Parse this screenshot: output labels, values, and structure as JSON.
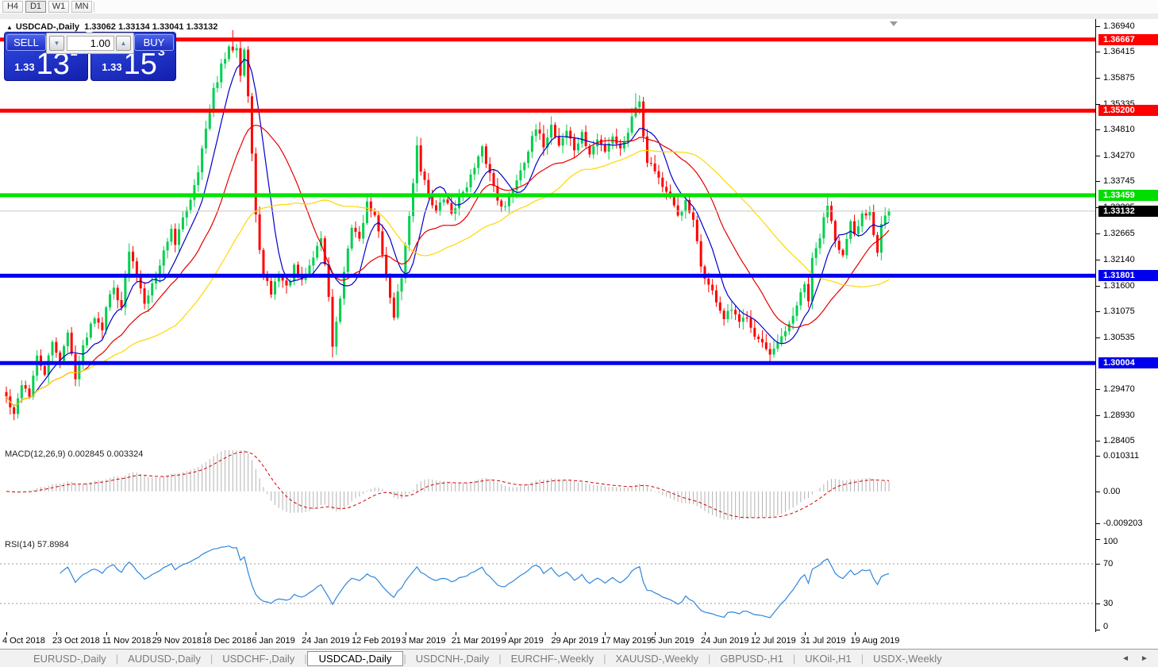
{
  "toolbar": {
    "timeframes": [
      {
        "label": "H4",
        "active": false
      },
      {
        "label": "D1",
        "active": true
      },
      {
        "label": "W1",
        "active": false
      },
      {
        "label": "MN",
        "active": false
      }
    ]
  },
  "title_bar": {
    "collapse_arrow": "▲",
    "symbol": "USDCAD-,Daily",
    "open": "1.33062",
    "high": "1.33134",
    "low": "1.33041",
    "close": "1.33132"
  },
  "trade_panel": {
    "sell_label": "SELL",
    "buy_label": "BUY",
    "lot_value": "1.00",
    "down_arrow": "▼",
    "up_arrow": "▲",
    "sell_price": {
      "prefix": "1.33",
      "big": "13",
      "sup": "2"
    },
    "buy_price": {
      "prefix": "1.33",
      "big": "15",
      "sup": "3"
    }
  },
  "price_axis": {
    "ticks": [
      {
        "text": "1.36940",
        "value": 1.3694
      },
      {
        "text": "1.36415",
        "value": 1.36415
      },
      {
        "text": "1.35875",
        "value": 1.35875
      },
      {
        "text": "1.35335",
        "value": 1.35335
      },
      {
        "text": "1.34810",
        "value": 1.3481
      },
      {
        "text": "1.34270",
        "value": 1.3427
      },
      {
        "text": "1.33745",
        "value": 1.33745
      },
      {
        "text": "1.33205",
        "value": 1.33205
      },
      {
        "text": "1.32665",
        "value": 1.32665
      },
      {
        "text": "1.32140",
        "value": 1.3214
      },
      {
        "text": "1.31600",
        "value": 1.316
      },
      {
        "text": "1.31075",
        "value": 1.31075
      },
      {
        "text": "1.30535",
        "value": 1.30535
      },
      {
        "text": "1.29470",
        "value": 1.2947
      },
      {
        "text": "1.28930",
        "value": 1.2893
      },
      {
        "text": "1.28405",
        "value": 1.28405
      }
    ],
    "badges": [
      {
        "text": "1.36667",
        "price": 1.36667,
        "bg": "#ff0000",
        "fg": "#ffffff"
      },
      {
        "text": "1.35200",
        "price": 1.352,
        "bg": "#ff0000",
        "fg": "#ffffff"
      },
      {
        "text": "1.33459",
        "price": 1.33459,
        "bg": "#00dd00",
        "fg": "#ffffff"
      },
      {
        "text": "1.33132",
        "price": 1.33132,
        "bg": "#000000",
        "fg": "#ffffff"
      },
      {
        "text": "1.31801",
        "price": 1.31801,
        "bg": "#0000ee",
        "fg": "#ffffff"
      },
      {
        "text": "1.30004",
        "price": 1.30004,
        "bg": "#0000ee",
        "fg": "#ffffff"
      }
    ]
  },
  "macd_panel": {
    "label": "MACD(12,26,9)",
    "value_main": "0.002845",
    "value_signal": "0.003324",
    "scale_labels": [
      {
        "text": "0.010311",
        "value": 0.010311
      },
      {
        "text": "0.00",
        "value": 0
      },
      {
        "text": "-0.009203",
        "value": -0.009203
      }
    ]
  },
  "rsi_panel": {
    "label": "RSI(14)",
    "value": "57.8984",
    "scale_labels": [
      {
        "text": "100",
        "value": 100
      },
      {
        "text": "70",
        "value": 70
      },
      {
        "text": "30",
        "value": 30
      },
      {
        "text": "0",
        "value": 0
      }
    ]
  },
  "x_axis": {
    "labels": [
      {
        "text": "4 Oct 2018",
        "index": 0
      },
      {
        "text": "23 Oct 2018",
        "index": 13
      },
      {
        "text": "11 Nov 2018",
        "index": 26
      },
      {
        "text": "29 Nov 2018",
        "index": 39
      },
      {
        "text": "18 Dec 2018",
        "index": 52
      },
      {
        "text": "6 Jan 2019",
        "index": 65
      },
      {
        "text": "24 Jan 2019",
        "index": 78
      },
      {
        "text": "12 Feb 2019",
        "index": 91
      },
      {
        "text": "3 Mar 2019",
        "index": 104
      },
      {
        "text": "21 Mar 2019",
        "index": 117
      },
      {
        "text": "9 Apr 2019",
        "index": 130
      },
      {
        "text": "29 Apr 2019",
        "index": 143
      },
      {
        "text": "17 May 2019",
        "index": 156
      },
      {
        "text": "5 Jun 2019",
        "index": 169
      },
      {
        "text": "24 Jun 2019",
        "index": 182
      },
      {
        "text": "12 Jul 2019",
        "index": 195
      },
      {
        "text": "31 Jul 2019",
        "index": 208
      },
      {
        "text": "19 Aug 2019",
        "index": 221
      }
    ]
  },
  "tabs": {
    "separator": "|",
    "scroll_left": "◄",
    "scroll_right": "►",
    "items": [
      {
        "label": "EURUSD-,Daily",
        "active": false
      },
      {
        "label": "AUDUSD-,Daily",
        "active": false
      },
      {
        "label": "USDCHF-,Daily",
        "active": false
      },
      {
        "label": "USDCAD-,Daily",
        "active": true
      },
      {
        "label": "USDCNH-,Daily",
        "active": false
      },
      {
        "label": "EURCHF-,Weekly",
        "active": false
      },
      {
        "label": "XAUUSD-,Weekly",
        "active": false
      },
      {
        "label": "GBPUSD-,H1",
        "active": false
      },
      {
        "label": "UKOil-,H1",
        "active": false
      },
      {
        "label": "USDX-,Weekly",
        "active": false
      }
    ]
  },
  "chart_data": {
    "type": "candlestick",
    "symbol": "USDCAD-",
    "timeframe": "Daily",
    "price_axis_top": 1.3694,
    "price_axis_bottom": 1.28405,
    "current_price": 1.33132,
    "current_price_line_color": "#c8c8c8",
    "up_color": "#00cf4e",
    "down_color": "#ff0000",
    "horizontal_lines": [
      {
        "price": 1.36667,
        "color": "#ff0000",
        "width": 5
      },
      {
        "price": 1.352,
        "color": "#ff0000",
        "width": 5
      },
      {
        "price": 1.33459,
        "color": "#00e400",
        "width": 5
      },
      {
        "price": 1.31801,
        "color": "#0000ee",
        "width": 5
      },
      {
        "price": 1.30004,
        "color": "#0000ee",
        "width": 5
      }
    ],
    "candle_count": 231,
    "close_path_anchors": [
      [
        0,
        1.293
      ],
      [
        2,
        1.289
      ],
      [
        4,
        1.296
      ],
      [
        6,
        1.2935
      ],
      [
        8,
        1.301
      ],
      [
        10,
        1.298
      ],
      [
        12,
        1.304
      ],
      [
        14,
        1.301
      ],
      [
        16,
        1.306
      ],
      [
        18,
        1.2975
      ],
      [
        21,
        1.306
      ],
      [
        23,
        1.31
      ],
      [
        25,
        1.3075
      ],
      [
        26,
        1.312
      ],
      [
        28,
        1.3155
      ],
      [
        30,
        1.312
      ],
      [
        32,
        1.323
      ],
      [
        34,
        1.318
      ],
      [
        36,
        1.313
      ],
      [
        39,
        1.318
      ],
      [
        41,
        1.323
      ],
      [
        43,
        1.328
      ],
      [
        44,
        1.324
      ],
      [
        46,
        1.33
      ],
      [
        48,
        1.334
      ],
      [
        50,
        1.34
      ],
      [
        52,
        1.348
      ],
      [
        54,
        1.356
      ],
      [
        56,
        1.361
      ],
      [
        58,
        1.3645
      ],
      [
        60,
        1.3655
      ],
      [
        61,
        1.36
      ],
      [
        62,
        1.3648
      ],
      [
        63,
        1.355
      ],
      [
        64,
        1.343
      ],
      [
        65,
        1.33
      ],
      [
        66,
        1.324
      ],
      [
        67,
        1.318
      ],
      [
        69,
        1.3145
      ],
      [
        71,
        1.3185
      ],
      [
        73,
        1.3155
      ],
      [
        75,
        1.3195
      ],
      [
        77,
        1.3165
      ],
      [
        79,
        1.32
      ],
      [
        81,
        1.324
      ],
      [
        82,
        1.326
      ],
      [
        84,
        1.314
      ],
      [
        85,
        1.3035
      ],
      [
        86,
        1.308
      ],
      [
        88,
        1.318
      ],
      [
        90,
        1.328
      ],
      [
        92,
        1.326
      ],
      [
        94,
        1.333
      ],
      [
        96,
        1.33
      ],
      [
        98,
        1.323
      ],
      [
        100,
        1.313
      ],
      [
        101,
        1.31
      ],
      [
        103,
        1.318
      ],
      [
        105,
        1.33
      ],
      [
        107,
        1.345
      ],
      [
        108,
        1.34
      ],
      [
        110,
        1.335
      ],
      [
        112,
        1.331
      ],
      [
        114,
        1.334
      ],
      [
        116,
        1.331
      ],
      [
        118,
        1.334
      ],
      [
        120,
        1.337
      ],
      [
        122,
        1.34
      ],
      [
        124,
        1.344
      ],
      [
        126,
        1.339
      ],
      [
        128,
        1.334
      ],
      [
        130,
        1.332
      ],
      [
        132,
        1.336
      ],
      [
        134,
        1.34
      ],
      [
        136,
        1.344
      ],
      [
        138,
        1.348
      ],
      [
        140,
        1.345
      ],
      [
        142,
        1.349
      ],
      [
        144,
        1.345
      ],
      [
        146,
        1.348
      ],
      [
        148,
        1.344
      ],
      [
        150,
        1.347
      ],
      [
        152,
        1.343
      ],
      [
        154,
        1.346
      ],
      [
        156,
        1.344
      ],
      [
        158,
        1.347
      ],
      [
        160,
        1.344
      ],
      [
        162,
        1.348
      ],
      [
        164,
        1.353
      ],
      [
        165,
        1.3545
      ],
      [
        166,
        1.347
      ],
      [
        167,
        1.342
      ],
      [
        169,
        1.34
      ],
      [
        171,
        1.3365
      ],
      [
        173,
        1.3335
      ],
      [
        175,
        1.3305
      ],
      [
        177,
        1.333
      ],
      [
        179,
        1.329
      ],
      [
        181,
        1.32
      ],
      [
        183,
        1.316
      ],
      [
        185,
        1.313
      ],
      [
        187,
        1.309
      ],
      [
        189,
        1.311
      ],
      [
        191,
        1.308
      ],
      [
        193,
        1.31
      ],
      [
        195,
        1.306
      ],
      [
        197,
        1.304
      ],
      [
        199,
        1.301
      ],
      [
        201,
        1.304
      ],
      [
        203,
        1.306
      ],
      [
        205,
        1.31
      ],
      [
        207,
        1.314
      ],
      [
        208,
        1.316
      ],
      [
        209,
        1.313
      ],
      [
        210,
        1.321
      ],
      [
        212,
        1.326
      ],
      [
        214,
        1.333
      ],
      [
        216,
        1.326
      ],
      [
        218,
        1.322
      ],
      [
        220,
        1.3285
      ],
      [
        221,
        1.326
      ],
      [
        223,
        1.3305
      ],
      [
        225,
        1.3315
      ],
      [
        226,
        1.327
      ],
      [
        227,
        1.3235
      ],
      [
        228,
        1.329
      ],
      [
        229,
        1.3305
      ],
      [
        230,
        1.33132
      ]
    ],
    "wick_extremes": [
      [
        59,
        1.3686,
        null
      ],
      [
        85,
        null,
        1.3012
      ],
      [
        107,
        1.3467,
        null
      ],
      [
        164,
        1.3556,
        null
      ],
      [
        199,
        null,
        1.2999
      ],
      [
        214,
        1.3346,
        null
      ]
    ],
    "moving_averages": [
      {
        "period": 8,
        "color": "#0000cc"
      },
      {
        "period": 21,
        "color": "#e60000"
      },
      {
        "period": 45,
        "color": "#ffd800"
      }
    ],
    "indicators": {
      "macd": {
        "fast": 12,
        "slow": 26,
        "signal": 9,
        "histogram_color": "#b2b2b2",
        "signal_color": "#d40000",
        "scale_max": 0.010311,
        "scale_min": -0.009203
      },
      "rsi": {
        "period": 14,
        "color": "#2e86de",
        "dashed_levels": [
          70,
          30
        ],
        "scale_max": 100,
        "scale_min": 0
      }
    }
  }
}
